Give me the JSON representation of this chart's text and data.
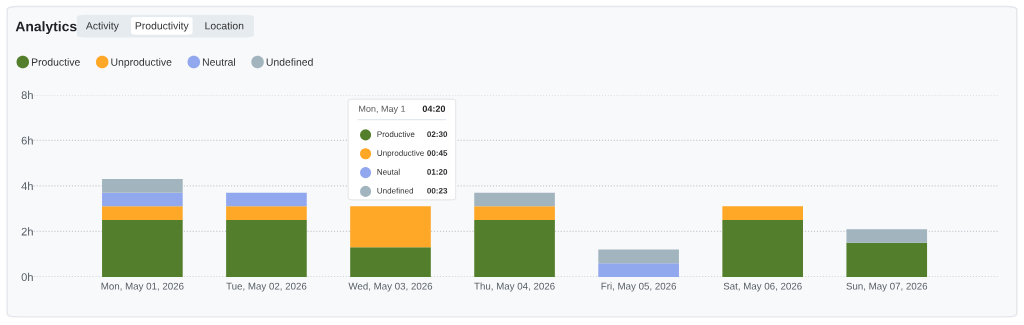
{
  "chart_data": {
    "type": "bar",
    "title": "Analytics",
    "stacked": true,
    "legend": "top left",
    "grid": "y",
    "categories": [
      "Mon, May 01, 2026",
      "Tue, May 02, 2026",
      "Wed, May 03, 2026",
      "Thu, May 04, 2026",
      "Fri, May 05, 2026",
      "Sat, May 06, 2026",
      "Sun, May 07, 2026"
    ],
    "series": [
      {
        "name": "Productive",
        "color": "#537f2c",
        "values": [
          2.5,
          2.5,
          1.3,
          2.5,
          0,
          2.5,
          1.5
        ]
      },
      {
        "name": "Unproductive",
        "color": "#ffa726",
        "values": [
          0.6,
          0.6,
          1.8,
          0.6,
          0,
          0.6,
          0
        ]
      },
      {
        "name": "Neutral",
        "color": "#91a7ee",
        "values": [
          0.6,
          0.6,
          0,
          0,
          0.6,
          0,
          0
        ]
      },
      {
        "name": "Undefined",
        "color": "#a2b5bf",
        "values": [
          0.6,
          0,
          0,
          0.6,
          0.6,
          0,
          0.6
        ]
      }
    ],
    "ylim": [
      0,
      8
    ],
    "yticks": [
      {
        "value": 0,
        "label": "0h"
      },
      {
        "value": 2,
        "label": "2h"
      },
      {
        "value": 4,
        "label": "4h"
      },
      {
        "value": 6,
        "label": "6h"
      },
      {
        "value": 8,
        "label": "8h"
      }
    ],
    "annotations": [
      "Activity",
      "Productivity",
      "Location",
      "Mon, May 1",
      "04:20",
      "Productive",
      "02:30",
      "Unproductive",
      "00:45",
      "Neutal",
      "01:20",
      "Undefined",
      "00:23"
    ]
  }
}
